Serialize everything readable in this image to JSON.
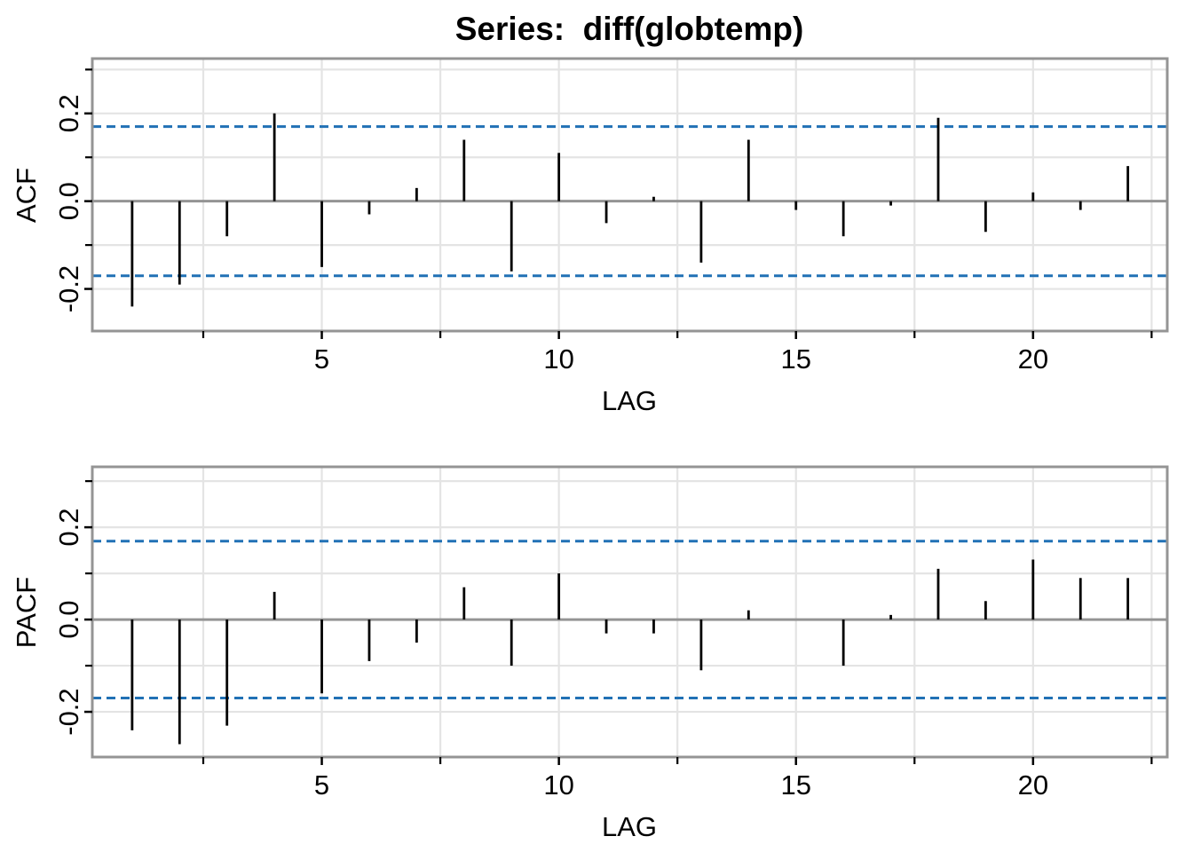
{
  "title": "Series:  diff(globtemp)",
  "colors": {
    "background": "#ffffff",
    "spike": "#000000",
    "ci_dashed_line": "#2171b5",
    "zero_line": "#949494",
    "panel_border": "#949494",
    "gridline": "#e4e4e4",
    "tick_mark": "#000000",
    "text": "#000000"
  },
  "chart_data": [
    {
      "type": "bar",
      "panel": "ACF",
      "title": "Series:  diff(globtemp)",
      "xlabel": "LAG",
      "ylabel": "ACF",
      "x": [
        1,
        2,
        3,
        4,
        5,
        6,
        7,
        8,
        9,
        10,
        11,
        12,
        13,
        14,
        15,
        16,
        17,
        18,
        19,
        20,
        21,
        22
      ],
      "values": [
        -0.24,
        -0.19,
        -0.08,
        0.2,
        -0.15,
        -0.03,
        0.03,
        0.14,
        -0.16,
        0.11,
        -0.05,
        0.01,
        -0.14,
        0.14,
        -0.02,
        -0.08,
        -0.01,
        0.19,
        -0.07,
        0.02,
        -0.02,
        0.08
      ],
      "ci": 0.17,
      "xlim": [
        0.16,
        22.83
      ],
      "ylim": [
        -0.296,
        0.325
      ],
      "grid": true,
      "legend": "none",
      "x_ticks_labeled": [
        5,
        10,
        15,
        20
      ],
      "x_tick_labels": [
        "5",
        "10",
        "15",
        "20"
      ],
      "x_ticks_minor": [
        2.5,
        7.5,
        12.5,
        17.5,
        22.5
      ],
      "y_ticks_labeled": [
        0.2,
        0,
        -0.2
      ],
      "y_tick_labels": [
        "0.2",
        "0.0",
        "-0.2"
      ],
      "y_ticks_minor": [
        0.3,
        0.1,
        -0.1
      ]
    },
    {
      "type": "bar",
      "panel": "PACF",
      "title": "",
      "xlabel": "LAG",
      "ylabel": "PACF",
      "x": [
        1,
        2,
        3,
        4,
        5,
        6,
        7,
        8,
        9,
        10,
        11,
        12,
        13,
        14,
        15,
        16,
        17,
        18,
        19,
        20,
        21,
        22
      ],
      "values": [
        -0.24,
        -0.27,
        -0.23,
        0.06,
        -0.16,
        -0.09,
        -0.05,
        0.07,
        -0.1,
        0.1,
        -0.03,
        -0.03,
        -0.11,
        0.02,
        0.0,
        -0.1,
        0.01,
        0.11,
        0.04,
        0.13,
        0.09,
        0.09
      ],
      "ci": 0.17,
      "xlim": [
        0.16,
        22.83
      ],
      "ylim": [
        -0.298,
        0.331
      ],
      "grid": true,
      "legend": "none",
      "x_ticks_labeled": [
        5,
        10,
        15,
        20
      ],
      "x_tick_labels": [
        "5",
        "10",
        "15",
        "20"
      ],
      "x_ticks_minor": [
        2.5,
        7.5,
        12.5,
        17.5,
        22.5
      ],
      "y_ticks_labeled": [
        0.2,
        0,
        -0.2
      ],
      "y_tick_labels": [
        "0.2",
        "0.0",
        "-0.2"
      ],
      "y_ticks_minor": [
        0.3,
        0.1,
        -0.1
      ]
    }
  ]
}
